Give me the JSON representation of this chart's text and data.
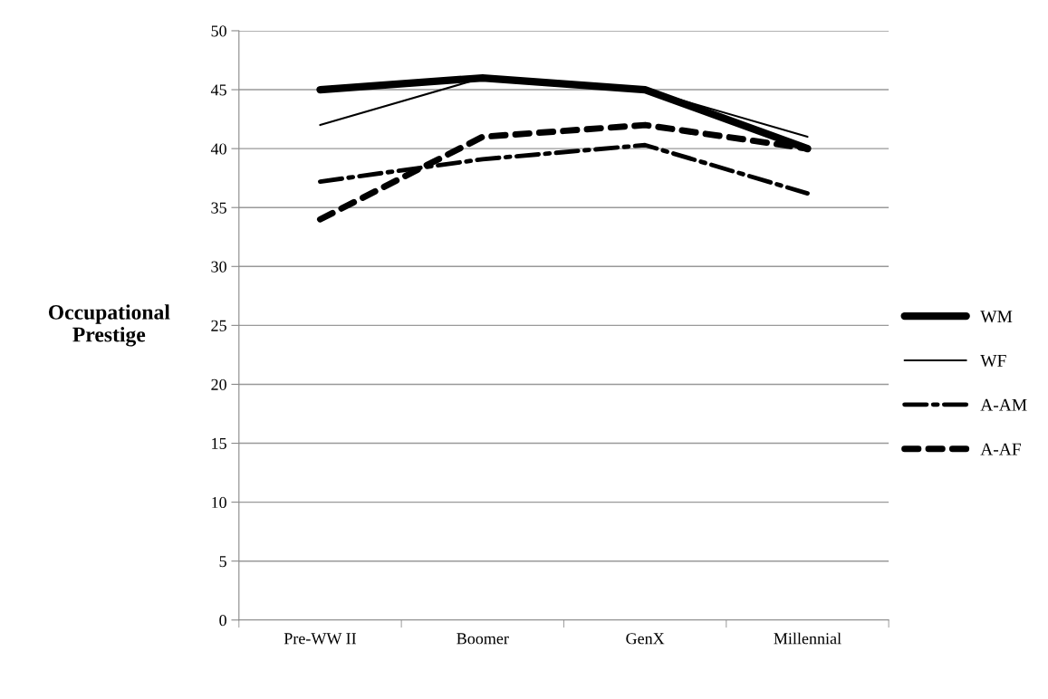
{
  "chart_data": {
    "type": "line",
    "ylabel": "Occupational\nPrestige",
    "categories": [
      "Pre-WW II",
      "Boomer",
      "GenX",
      "Millennial"
    ],
    "ylim": [
      0,
      50
    ],
    "yticks": [
      0,
      5,
      10,
      15,
      20,
      25,
      30,
      35,
      40,
      45,
      50
    ],
    "grid": "y",
    "legend": "right",
    "marker": "none",
    "series": [
      {
        "name": "WM",
        "color": "#000000",
        "values": [
          45,
          46,
          45,
          40
        ],
        "line_style": "solid"
      },
      {
        "name": "WF",
        "color": "#000000",
        "values": [
          42,
          46,
          45,
          41
        ],
        "line_style": "solid"
      },
      {
        "name": "A-AM",
        "color": "#000000",
        "values": [
          37.2,
          39.1,
          40.3,
          36.2
        ],
        "line_style": "dashed"
      },
      {
        "name": "A-AF",
        "color": "#000000",
        "values": [
          34,
          41,
          42,
          40
        ],
        "line_style": "dashed"
      }
    ]
  }
}
